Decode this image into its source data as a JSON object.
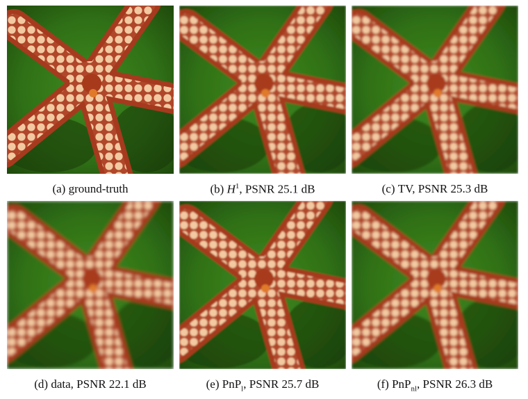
{
  "figure": {
    "panels": [
      {
        "tag": "(a)",
        "method": "ground-truth"
      },
      {
        "tag": "(b)",
        "method": "H",
        "sup": "1",
        "rest": ", PSNR 25.1 dB"
      },
      {
        "tag": "(c)",
        "method": "TV",
        "rest": ", PSNR 25.3 dB"
      },
      {
        "tag": "(d)",
        "method": "data",
        "rest": ", PSNR 22.1 dB"
      },
      {
        "tag": "(e)",
        "method": "PnP",
        "sub": "l",
        "rest": ", PSNR 25.7 dB"
      },
      {
        "tag": "(f)",
        "method": "PnP",
        "sub": "nl",
        "rest": ", PSNR 26.3 dB"
      }
    ]
  }
}
